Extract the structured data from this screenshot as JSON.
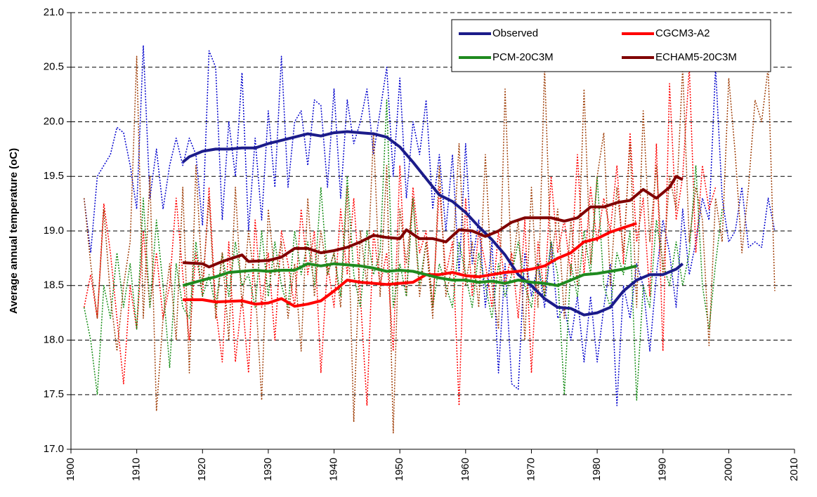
{
  "chart_data": {
    "type": "line",
    "ylabel": "Average annual temperature (oC)",
    "xlim": [
      1900,
      2010
    ],
    "xticks": [
      1900,
      1910,
      1920,
      1930,
      1940,
      1950,
      1960,
      1970,
      1980,
      1990,
      2000,
      2010
    ],
    "ylim": [
      17,
      21
    ],
    "yticks": [
      {
        "value": 17,
        "label": "17.0"
      },
      17.5,
      {
        "value": 18,
        "label": "18.0"
      },
      18.5,
      {
        "value": 19,
        "label": "19.0"
      },
      19.5,
      {
        "value": 20,
        "label": "20.0"
      },
      20.5,
      {
        "value": 21,
        "label": "21.0"
      }
    ],
    "grid": true,
    "legend": "upper right",
    "series": [
      {
        "name": "Observed",
        "color": "#1c1c8a",
        "linestyle": "solid",
        "x": [
          1917,
          1918,
          1920,
          1922,
          1924,
          1926,
          1928,
          1930,
          1932,
          1934,
          1936,
          1938,
          1940,
          1942,
          1944,
          1946,
          1948,
          1950,
          1952,
          1954,
          1956,
          1958,
          1960,
          1962,
          1964,
          1966,
          1968,
          1970,
          1972,
          1974,
          1976,
          1978,
          1980,
          1982,
          1984,
          1986,
          1988,
          1990,
          1992,
          1993
        ],
        "values": [
          19.63,
          19.68,
          19.73,
          19.75,
          19.75,
          19.76,
          19.76,
          19.8,
          19.83,
          19.86,
          19.89,
          19.87,
          19.9,
          19.91,
          19.9,
          19.89,
          19.86,
          19.77,
          19.63,
          19.48,
          19.33,
          19.27,
          19.17,
          19.04,
          18.92,
          18.78,
          18.6,
          18.5,
          18.38,
          18.3,
          18.29,
          18.23,
          18.25,
          18.3,
          18.45,
          18.55,
          18.6,
          18.6,
          18.65,
          18.7
        ]
      },
      {
        "name": "CGCM3-A2",
        "color": "#ff0000",
        "linestyle": "solid",
        "x": [
          1917,
          1920,
          1922,
          1926,
          1928,
          1930,
          1932,
          1934,
          1936,
          1938,
          1940,
          1942,
          1944,
          1946,
          1948,
          1950,
          1952,
          1954,
          1956,
          1958,
          1960,
          1962,
          1964,
          1966,
          1968,
          1970,
          1972,
          1974,
          1976,
          1978,
          1980,
          1982,
          1984,
          1986
        ],
        "values": [
          18.37,
          18.37,
          18.35,
          18.36,
          18.33,
          18.34,
          18.38,
          18.31,
          18.33,
          18.36,
          18.45,
          18.55,
          18.53,
          18.52,
          18.51,
          18.52,
          18.53,
          18.6,
          18.6,
          18.62,
          18.59,
          18.58,
          18.6,
          18.62,
          18.63,
          18.65,
          18.68,
          18.75,
          18.8,
          18.9,
          18.93,
          18.99,
          19.03,
          19.07
        ]
      },
      {
        "name": "PCM-20C3M",
        "color": "#1f8a1f",
        "linestyle": "solid",
        "x": [
          1917,
          1920,
          1922,
          1924,
          1926,
          1928,
          1930,
          1932,
          1934,
          1936,
          1938,
          1940,
          1942,
          1944,
          1946,
          1948,
          1950,
          1952,
          1954,
          1956,
          1958,
          1960,
          1962,
          1964,
          1966,
          1968,
          1970,
          1972,
          1974,
          1976,
          1978,
          1980,
          1982,
          1984,
          1986
        ],
        "values": [
          18.5,
          18.55,
          18.58,
          18.62,
          18.63,
          18.64,
          18.63,
          18.64,
          18.64,
          18.7,
          18.68,
          18.7,
          18.69,
          18.68,
          18.66,
          18.63,
          18.64,
          18.63,
          18.6,
          18.57,
          18.55,
          18.55,
          18.53,
          18.54,
          18.52,
          18.55,
          18.53,
          18.52,
          18.5,
          18.55,
          18.6,
          18.61,
          18.63,
          18.65,
          18.68
        ]
      },
      {
        "name": "ECHAM5-20C3M",
        "color": "#800000",
        "linestyle": "solid",
        "x": [
          1917,
          1920,
          1921,
          1923,
          1926,
          1927,
          1930,
          1932,
          1934,
          1936,
          1938,
          1940,
          1942,
          1944,
          1946,
          1948,
          1950,
          1951,
          1953,
          1955,
          1957,
          1959,
          1961,
          1963,
          1965,
          1967,
          1969,
          1971,
          1973,
          1975,
          1977,
          1979,
          1981,
          1983,
          1985,
          1987,
          1989,
          1991,
          1992,
          1993
        ],
        "values": [
          18.71,
          18.7,
          18.67,
          18.72,
          18.78,
          18.72,
          18.73,
          18.76,
          18.84,
          18.84,
          18.8,
          18.82,
          18.85,
          18.9,
          18.96,
          18.94,
          18.93,
          19.01,
          18.93,
          18.93,
          18.9,
          19.01,
          19.0,
          18.95,
          19.0,
          19.08,
          19.12,
          19.12,
          19.12,
          19.09,
          19.12,
          19.22,
          19.22,
          19.26,
          19.28,
          19.38,
          19.3,
          19.4,
          19.5,
          19.47
        ]
      },
      {
        "color": "#0000cc",
        "linestyle": "dotted",
        "x": [
          1902,
          1903,
          1904,
          1905,
          1906,
          1907,
          1908,
          1909,
          1910,
          1911,
          1912,
          1913,
          1914,
          1915,
          1916,
          1917,
          1918,
          1919,
          1920,
          1921,
          1922,
          1923,
          1924,
          1925,
          1926,
          1927,
          1928,
          1929,
          1930,
          1931,
          1932,
          1933,
          1934,
          1935,
          1936,
          1937,
          1938,
          1939,
          1940,
          1941,
          1942,
          1943,
          1944,
          1945,
          1946,
          1947,
          1948,
          1949,
          1950,
          1951,
          1952,
          1953,
          1954,
          1955,
          1956,
          1957,
          1958,
          1959,
          1960,
          1961,
          1962,
          1963,
          1964,
          1965,
          1966,
          1967,
          1968,
          1969,
          1970,
          1971,
          1972,
          1973,
          1974,
          1975,
          1976,
          1977,
          1978,
          1979,
          1980,
          1981,
          1982,
          1983,
          1984,
          1985,
          1986,
          1987,
          1988,
          1989,
          1990,
          1991,
          1992,
          1993,
          1994,
          1995,
          1996,
          1997,
          1998,
          1999,
          2000,
          2001,
          2002,
          2003,
          2004,
          2005,
          2006,
          2007
        ],
        "values": [
          19.3,
          18.8,
          19.5,
          19.6,
          19.7,
          19.95,
          19.9,
          19.6,
          19.2,
          20.7,
          19.3,
          19.75,
          19.2,
          19.6,
          19.85,
          19.6,
          19.85,
          19.7,
          19.05,
          20.65,
          20.5,
          19.1,
          20.0,
          19.5,
          20.45,
          19.0,
          19.85,
          19.1,
          20.1,
          19.4,
          20.6,
          19.4,
          20.0,
          20.1,
          19.6,
          20.2,
          20.15,
          19.4,
          20.3,
          19.3,
          20.2,
          19.8,
          20.0,
          20.3,
          19.7,
          20.1,
          20.5,
          19.5,
          20.4,
          19.3,
          20.0,
          19.7,
          20.2,
          19.2,
          19.7,
          19.0,
          19.7,
          18.6,
          19.8,
          18.7,
          19.1,
          18.3,
          18.9,
          17.7,
          18.7,
          17.6,
          17.55,
          18.8,
          18.4,
          18.7,
          18.3,
          18.9,
          18.2,
          18.3,
          18.0,
          18.4,
          17.8,
          18.4,
          17.8,
          18.3,
          18.7,
          17.4,
          18.5,
          18.2,
          18.7,
          18.5,
          17.9,
          18.6,
          19.1,
          18.8,
          18.3,
          19.2,
          18.6,
          18.9,
          19.3,
          19.1,
          20.5,
          19.3,
          18.9,
          19.0,
          19.4,
          18.85,
          18.9,
          18.85,
          19.3,
          19.0
        ]
      },
      {
        "color": "#ff0000",
        "linestyle": "dotted",
        "x": [
          1902,
          1903,
          1904,
          1905,
          1906,
          1907,
          1908,
          1909,
          1910,
          1911,
          1912,
          1913,
          1914,
          1915,
          1916,
          1917,
          1918,
          1919,
          1920,
          1921,
          1922,
          1923,
          1924,
          1925,
          1926,
          1927,
          1928,
          1929,
          1930,
          1931,
          1932,
          1933,
          1934,
          1935,
          1936,
          1937,
          1938,
          1939,
          1940,
          1941,
          1942,
          1943,
          1944,
          1945,
          1946,
          1947,
          1948,
          1949,
          1950,
          1951,
          1952,
          1953,
          1954,
          1955,
          1956,
          1957,
          1958,
          1959,
          1960,
          1961,
          1962,
          1963,
          1964,
          1965,
          1966,
          1967,
          1968,
          1969,
          1970,
          1971,
          1972,
          1973,
          1974,
          1975,
          1976,
          1977,
          1978,
          1979,
          1980,
          1981,
          1982,
          1983,
          1984,
          1985,
          1986,
          1987,
          1988,
          1989,
          1990,
          1991,
          1992,
          1993,
          1994,
          1995,
          1996,
          1997,
          1998
        ],
        "values": [
          18.3,
          18.6,
          18.2,
          19.25,
          18.8,
          18.2,
          17.6,
          18.5,
          18.1,
          19.0,
          18.3,
          18.8,
          18.2,
          18.5,
          19.3,
          18.6,
          18.0,
          18.8,
          18.4,
          19.4,
          18.3,
          17.8,
          18.9,
          17.8,
          18.4,
          17.7,
          19.1,
          18.3,
          18.8,
          18.0,
          19.0,
          18.7,
          18.3,
          19.2,
          18.6,
          19.0,
          17.7,
          18.7,
          18.3,
          19.2,
          18.6,
          19.3,
          18.4,
          17.4,
          19.0,
          18.5,
          18.8,
          17.9,
          19.6,
          18.4,
          19.4,
          18.8,
          19.0,
          18.3,
          19.4,
          18.6,
          18.9,
          17.4,
          19.3,
          18.4,
          19.0,
          18.7,
          18.3,
          19.0,
          18.5,
          18.8,
          18.2,
          19.1,
          17.7,
          18.9,
          18.4,
          19.5,
          18.8,
          19.1,
          18.6,
          19.7,
          18.6,
          19.4,
          18.9,
          19.3,
          19.0,
          19.6,
          18.7,
          19.9,
          18.9,
          19.3,
          18.4,
          19.8,
          17.9,
          20.35,
          19.1,
          19.5,
          20.5,
          18.8,
          19.6,
          19.2,
          19.4
        ]
      },
      {
        "color": "#108a10",
        "linestyle": "dotted",
        "x": [
          1902,
          1903,
          1904,
          1905,
          1906,
          1907,
          1908,
          1909,
          1910,
          1911,
          1912,
          1913,
          1914,
          1915,
          1916,
          1917,
          1918,
          1919,
          1920,
          1921,
          1922,
          1923,
          1924,
          1925,
          1926,
          1927,
          1928,
          1929,
          1930,
          1931,
          1932,
          1933,
          1934,
          1935,
          1936,
          1937,
          1938,
          1939,
          1940,
          1941,
          1942,
          1943,
          1944,
          1945,
          1946,
          1947,
          1948,
          1949,
          1950,
          1951,
          1952,
          1953,
          1954,
          1955,
          1956,
          1957,
          1958,
          1959,
          1960,
          1961,
          1962,
          1963,
          1964,
          1965,
          1966,
          1967,
          1968,
          1969,
          1970,
          1971,
          1972,
          1973,
          1974,
          1975,
          1976,
          1977,
          1978,
          1979,
          1980,
          1981,
          1982,
          1983,
          1984,
          1985,
          1986,
          1987,
          1988,
          1989,
          1990,
          1991,
          1992,
          1993,
          1994,
          1995,
          1996,
          1997,
          1998,
          1999
        ],
        "values": [
          18.3,
          18.0,
          17.5,
          18.5,
          18.2,
          18.8,
          18.3,
          18.7,
          18.1,
          19.3,
          18.3,
          19.1,
          18.5,
          17.75,
          18.7,
          18.3,
          18.2,
          18.9,
          18.4,
          18.6,
          18.3,
          18.8,
          18.4,
          18.9,
          18.5,
          18.6,
          18.3,
          19.0,
          18.4,
          18.9,
          18.5,
          18.3,
          19.0,
          18.6,
          18.9,
          18.5,
          19.4,
          18.6,
          18.8,
          18.4,
          19.5,
          18.6,
          18.3,
          19.0,
          18.6,
          18.8,
          20.2,
          18.3,
          18.7,
          18.4,
          19.3,
          18.5,
          18.9,
          18.3,
          18.7,
          18.5,
          18.3,
          18.9,
          18.6,
          18.3,
          18.8,
          18.5,
          18.2,
          18.7,
          18.4,
          18.6,
          18.9,
          18.5,
          18.3,
          18.7,
          18.4,
          18.9,
          18.6,
          17.5,
          18.7,
          18.4,
          19.0,
          18.6,
          19.5,
          18.5,
          18.3,
          18.8,
          18.6,
          19.0,
          17.45,
          18.5,
          18.3,
          19.1,
          18.7,
          18.5,
          18.9,
          18.5,
          18.8,
          19.6,
          18.5,
          18.1,
          18.7,
          19.2
        ]
      },
      {
        "color": "#a0400a",
        "linestyle": "dotted",
        "x": [
          1902,
          1903,
          1904,
          1905,
          1906,
          1907,
          1908,
          1909,
          1910,
          1911,
          1912,
          1913,
          1914,
          1915,
          1916,
          1917,
          1918,
          1919,
          1920,
          1921,
          1922,
          1923,
          1924,
          1925,
          1926,
          1927,
          1928,
          1929,
          1930,
          1931,
          1932,
          1933,
          1934,
          1935,
          1936,
          1937,
          1938,
          1939,
          1940,
          1941,
          1942,
          1943,
          1944,
          1945,
          1946,
          1947,
          1948,
          1949,
          1950,
          1951,
          1952,
          1953,
          1954,
          1955,
          1956,
          1957,
          1958,
          1959,
          1960,
          1961,
          1962,
          1963,
          1964,
          1965,
          1966,
          1967,
          1968,
          1969,
          1970,
          1971,
          1972,
          1973,
          1974,
          1975,
          1976,
          1977,
          1978,
          1979,
          1980,
          1981,
          1982,
          1983,
          1984,
          1985,
          1986,
          1987,
          1988,
          1989,
          1990,
          1991,
          1992,
          1993,
          1994,
          1995,
          1996,
          1997,
          1998,
          1999,
          2000,
          2001,
          2002,
          2003,
          2004,
          2005,
          2006,
          2007
        ],
        "values": [
          19.3,
          18.7,
          18.2,
          19.2,
          18.4,
          17.9,
          18.5,
          18.9,
          20.6,
          18.2,
          19.5,
          17.35,
          18.2,
          18.7,
          18.0,
          19.4,
          17.7,
          19.6,
          18.5,
          19.3,
          18.2,
          18.8,
          18.0,
          19.4,
          18.3,
          19.0,
          18.5,
          17.45,
          19.2,
          18.6,
          18.9,
          18.2,
          18.7,
          17.9,
          19.3,
          18.4,
          19.0,
          18.6,
          18.8,
          18.3,
          19.4,
          17.25,
          19.0,
          18.5,
          19.9,
          18.4,
          19.6,
          17.15,
          19.2,
          18.7,
          19.3,
          18.4,
          18.9,
          18.2,
          19.6,
          18.4,
          18.7,
          19.8,
          18.5,
          18.9,
          18.3,
          19.7,
          18.5,
          18.1,
          20.3,
          18.6,
          19.1,
          18.0,
          19.4,
          18.3,
          20.5,
          18.7,
          19.2,
          18.2,
          19.1,
          18.5,
          20.3,
          18.7,
          19.5,
          19.9,
          18.5,
          19.4,
          18.8,
          19.8,
          18.3,
          20.1,
          18.9,
          19.6,
          18.6,
          19.5,
          19.2,
          20.5,
          18.9,
          19.4,
          19.1,
          17.95,
          19.3,
          18.9,
          20.4,
          19.7,
          18.8,
          19.4,
          20.2,
          20.0,
          20.5,
          18.45
        ]
      }
    ]
  }
}
